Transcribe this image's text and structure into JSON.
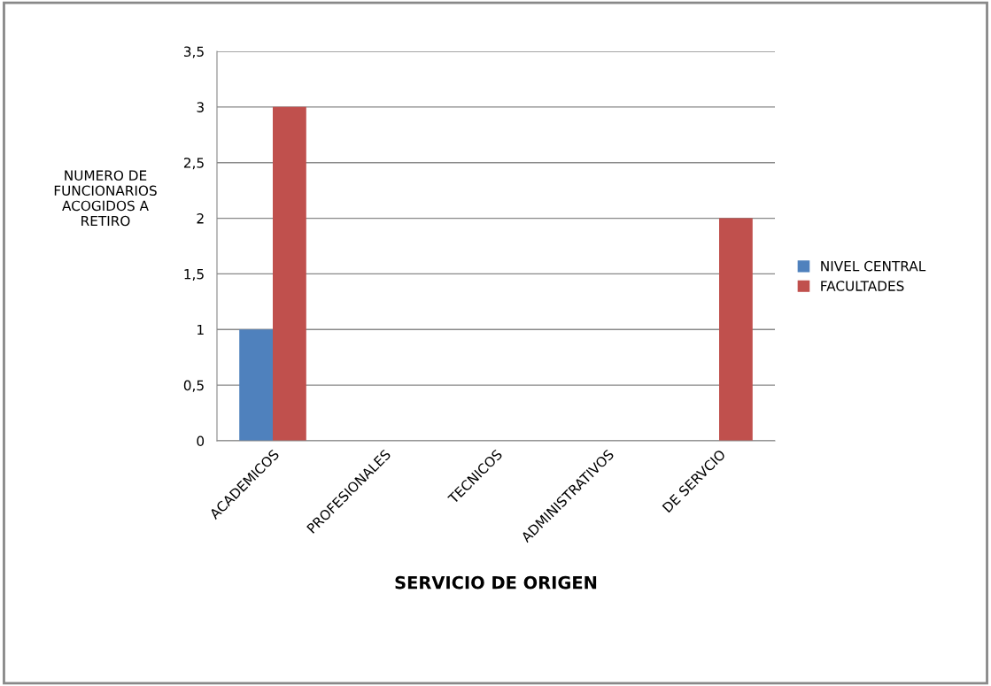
{
  "chart_data": {
    "type": "bar",
    "xlabel": "SERVICIO DE ORIGEN",
    "ylabel": "NUMERO DE\nFUNCIONARIOS\nACOGIDOS A\nRETIRO",
    "categories": [
      "ACADEMICOS",
      "PROFESIONALES",
      "TECNICOS",
      "ADMINISTRATIVOS",
      "DE SERVCIO"
    ],
    "series": [
      {
        "name": "NIVEL CENTRAL",
        "color": "#4f81bd",
        "values": [
          1,
          0,
          0,
          0,
          0
        ]
      },
      {
        "name": "FACULTADES",
        "color": "#c0504d",
        "values": [
          3,
          0,
          0,
          0,
          2
        ]
      }
    ],
    "ylim": [
      0,
      3.5
    ],
    "yticks": [
      0,
      {
        "value": 0.5,
        "label": "0,5"
      },
      1,
      {
        "value": 1.5,
        "label": "1,5"
      },
      2,
      {
        "value": 2.5,
        "label": "2,5"
      },
      3,
      {
        "value": 3.5,
        "label": "3,5"
      }
    ],
    "grid": "y",
    "legend": "right"
  }
}
